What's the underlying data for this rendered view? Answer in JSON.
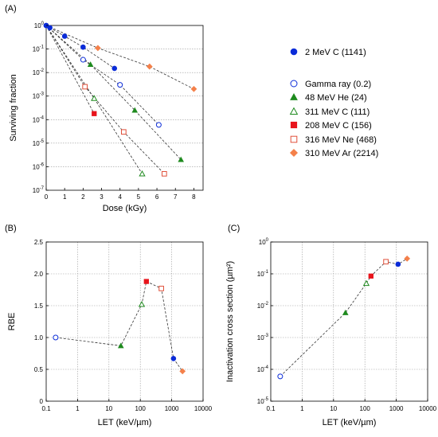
{
  "colors": {
    "blue": "#0a2bd8",
    "green": "#1e8a1e",
    "red": "#e8141c",
    "orange_open": "#e0503a",
    "orange": "#f4804a"
  },
  "panel_labels": [
    "(A)",
    "(B)",
    "(C)"
  ],
  "legend": [
    {
      "name": "2 MeV C (1141)",
      "marker": "filled-circle",
      "color": "#0a2bd8"
    },
    {
      "name": "Gamma ray (0.2)",
      "marker": "open-circle",
      "color": "#0a2bd8"
    },
    {
      "name": "48 MeV He (24)",
      "marker": "filled-triangle",
      "color": "#1e8a1e"
    },
    {
      "name": "311 MeV C (111)",
      "marker": "open-triangle",
      "color": "#1e8a1e"
    },
    {
      "name": "208 MeV C (156)",
      "marker": "filled-square",
      "color": "#e8141c"
    },
    {
      "name": "316 MeV Ne (468)",
      "marker": "open-square",
      "color": "#e0503a"
    },
    {
      "name": "310 MeV Ar (2214)",
      "marker": "filled-diamond",
      "color": "#f4804a"
    }
  ],
  "chart_data": [
    {
      "panel": "(A)",
      "type": "scatter",
      "xlabel": "Dose (kGy)",
      "ylabel": "Surviving fraction",
      "xlim": [
        0,
        8.5
      ],
      "ylim": [
        1e-07,
        1
      ],
      "yscale": "log",
      "xticks": [
        "0",
        "1",
        "2",
        "3",
        "4",
        "5",
        "6",
        "7",
        "8"
      ],
      "yticks": [
        "10^0",
        "10^-1",
        "10^-2",
        "10^-3",
        "10^-4",
        "10^-5",
        "10^-6",
        "10^-7"
      ],
      "grid": "horizontal",
      "legend_position": "right",
      "series": [
        {
          "name": "2 MeV C (1141)",
          "marker": "filled-circle",
          "color": "#0a2bd8",
          "x": [
            0,
            0.2,
            1,
            2,
            3.7
          ],
          "y": [
            1,
            0.8,
            0.35,
            0.12,
            0.015
          ]
        },
        {
          "name": "Gamma ray (0.2)",
          "marker": "open-circle",
          "color": "#0a2bd8",
          "x": [
            0,
            2,
            4,
            6.1
          ],
          "y": [
            1,
            0.035,
            0.003,
            6e-05
          ]
        },
        {
          "name": "48 MeV He (24)",
          "marker": "filled-triangle",
          "color": "#1e8a1e",
          "x": [
            0,
            2.4,
            4.8,
            7.3
          ],
          "y": [
            1,
            0.022,
            0.00025,
            2e-06
          ]
        },
        {
          "name": "311 MeV C (111)",
          "marker": "open-triangle",
          "color": "#1e8a1e",
          "x": [
            0,
            2.6,
            5.2
          ],
          "y": [
            1,
            0.0008,
            5e-07
          ]
        },
        {
          "name": "208 MeV C (156)",
          "marker": "filled-square",
          "color": "#e8141c",
          "x": [
            0,
            2.6
          ],
          "y": [
            1,
            0.00018
          ]
        },
        {
          "name": "316 MeV Ne (468)",
          "marker": "open-square",
          "color": "#e0503a",
          "x": [
            0,
            2.1,
            4.2,
            6.4
          ],
          "y": [
            1,
            0.0025,
            3e-05,
            5e-07
          ]
        },
        {
          "name": "310 MeV Ar (2214)",
          "marker": "filled-diamond",
          "color": "#f4804a",
          "x": [
            0,
            2.8,
            5.6,
            8
          ],
          "y": [
            1,
            0.11,
            0.018,
            0.002
          ]
        }
      ]
    },
    {
      "panel": "(B)",
      "type": "line",
      "xlabel": "LET (keV/µm)",
      "ylabel": "RBE",
      "xscale": "log",
      "xlim": [
        0.1,
        10000
      ],
      "ylim": [
        0,
        2.5
      ],
      "xticks": [
        "0.1",
        "1",
        "10",
        "100",
        "1000",
        "10000"
      ],
      "yticks": [
        "0",
        "0.5",
        "1.0",
        "1.5",
        "2.0",
        "2.5"
      ],
      "grid": "both",
      "points": [
        {
          "name": "Gamma ray (0.2)",
          "marker": "open-circle",
          "color": "#0a2bd8",
          "x": 0.2,
          "y": 1.0
        },
        {
          "name": "48 MeV He (24)",
          "marker": "filled-triangle",
          "color": "#1e8a1e",
          "x": 24,
          "y": 0.87
        },
        {
          "name": "311 MeV C (111)",
          "marker": "open-triangle",
          "color": "#1e8a1e",
          "x": 111,
          "y": 1.52
        },
        {
          "name": "208 MeV C (156)",
          "marker": "filled-square",
          "color": "#e8141c",
          "x": 156,
          "y": 1.88
        },
        {
          "name": "316 MeV Ne (468)",
          "marker": "open-square",
          "color": "#e0503a",
          "x": 468,
          "y": 1.77
        },
        {
          "name": "2 MeV C (1141)",
          "marker": "filled-circle",
          "color": "#0a2bd8",
          "x": 1141,
          "y": 0.67
        },
        {
          "name": "310 MeV Ar (2214)",
          "marker": "filled-diamond",
          "color": "#f4804a",
          "x": 2214,
          "y": 0.47
        }
      ]
    },
    {
      "panel": "(C)",
      "type": "line",
      "xlabel": "LET (keV/µm)",
      "ylabel": "Inactivation cross section (µm²)",
      "xscale": "log",
      "yscale": "log",
      "xlim": [
        0.1,
        10000
      ],
      "ylim": [
        1e-05,
        1
      ],
      "xticks": [
        "0.1",
        "1",
        "10",
        "100",
        "1000",
        "10000"
      ],
      "yticks": [
        "10^0",
        "10^-1",
        "10^-2",
        "10^-3",
        "10^-4",
        "10^-5"
      ],
      "grid": "both",
      "points": [
        {
          "name": "Gamma ray (0.2)",
          "marker": "open-circle",
          "color": "#0a2bd8",
          "x": 0.2,
          "y": 6e-05
        },
        {
          "name": "48 MeV He (24)",
          "marker": "filled-triangle",
          "color": "#1e8a1e",
          "x": 24,
          "y": 0.006
        },
        {
          "name": "311 MeV C (111)",
          "marker": "open-triangle",
          "color": "#1e8a1e",
          "x": 111,
          "y": 0.05
        },
        {
          "name": "208 MeV C (156)",
          "marker": "filled-square",
          "color": "#e8141c",
          "x": 156,
          "y": 0.085
        },
        {
          "name": "316 MeV Ne (468)",
          "marker": "open-square",
          "color": "#e0503a",
          "x": 468,
          "y": 0.24
        },
        {
          "name": "2 MeV C (1141)",
          "marker": "filled-circle",
          "color": "#0a2bd8",
          "x": 1141,
          "y": 0.2
        },
        {
          "name": "310 MeV Ar (2214)",
          "marker": "filled-diamond",
          "color": "#f4804a",
          "x": 2214,
          "y": 0.3
        }
      ]
    }
  ]
}
